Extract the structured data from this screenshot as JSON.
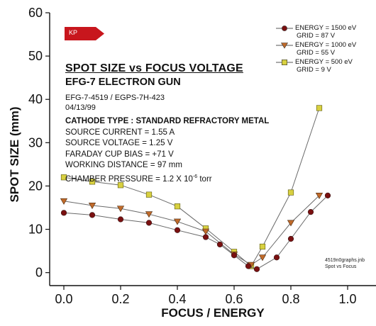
{
  "chart_data": {
    "type": "line",
    "title": "SPOT SIZE vs FOCUS VOLTAGE",
    "subtitle": "EFG-7 ELECTRON GUN",
    "xlabel": "FOCUS / ENERGY",
    "ylabel": "SPOT SIZE (mm)",
    "xlim": [
      -0.05,
      1.1
    ],
    "ylim": [
      -3,
      60
    ],
    "x_ticks": [
      "0.0",
      "0.2",
      "0.4",
      "0.6",
      "0.8",
      "1.0"
    ],
    "y_ticks": [
      "0",
      "10",
      "20",
      "30",
      "40",
      "50",
      "60"
    ],
    "series": [
      {
        "name": "ENERGY = 1500 eV",
        "grid": "GRID = 87 V",
        "color": "#7a1010",
        "marker": "circle",
        "points": [
          [
            0.0,
            13.8
          ],
          [
            0.1,
            13.3
          ],
          [
            0.2,
            12.3
          ],
          [
            0.3,
            11.5
          ],
          [
            0.4,
            9.8
          ],
          [
            0.5,
            8.2
          ],
          [
            0.55,
            6.5
          ],
          [
            0.6,
            4.0
          ],
          [
            0.65,
            1.5
          ],
          [
            0.68,
            0.8
          ],
          [
            0.75,
            3.5
          ],
          [
            0.8,
            7.8
          ],
          [
            0.87,
            14.0
          ],
          [
            0.93,
            17.8
          ]
        ]
      },
      {
        "name": "ENERGY = 1000 eV",
        "grid": "GRID = 55 V",
        "color": "#c06a2a",
        "marker": "triangle",
        "points": [
          [
            0.0,
            16.5
          ],
          [
            0.1,
            15.5
          ],
          [
            0.2,
            14.8
          ],
          [
            0.3,
            13.5
          ],
          [
            0.4,
            11.8
          ],
          [
            0.5,
            9.5
          ],
          [
            0.6,
            4.2
          ],
          [
            0.66,
            1.8
          ],
          [
            0.7,
            3.5
          ],
          [
            0.8,
            11.5
          ],
          [
            0.9,
            17.8
          ]
        ]
      },
      {
        "name": "ENERGY = 500 eV",
        "grid": "GRID = 9 V",
        "color": "#b8b020",
        "marker": "square",
        "points": [
          [
            0.0,
            22.0
          ],
          [
            0.1,
            21.0
          ],
          [
            0.2,
            20.2
          ],
          [
            0.3,
            18.0
          ],
          [
            0.4,
            15.3
          ],
          [
            0.5,
            10.2
          ],
          [
            0.6,
            4.8
          ],
          [
            0.66,
            1.5
          ],
          [
            0.7,
            6.0
          ],
          [
            0.8,
            18.5
          ],
          [
            0.9,
            38.0
          ]
        ]
      }
    ],
    "info": {
      "part_lines": [
        "EFG-7-4519 / EGPS-7H-423",
        "04/13/99"
      ],
      "cathode": "CATHODE TYPE : STANDARD REFRACTORY METAL",
      "specs": [
        "SOURCE CURRENT = 1.55 A",
        "SOURCE VOLTAGE = 1.25 V",
        "FARADAY CUP BIAS = +71 V",
        "WORKING DISTANCE = 97 mm"
      ],
      "pressure_prefix": "CHAMBER PRESSURE = 1.2 X 10",
      "pressure_exp": "-6",
      "pressure_suffix": " torr"
    },
    "logo": "KP",
    "footnote": [
      "4519n0graphs.jnb",
      "Spot vs Focus"
    ],
    "grid": false,
    "legend_position": "top-right"
  }
}
